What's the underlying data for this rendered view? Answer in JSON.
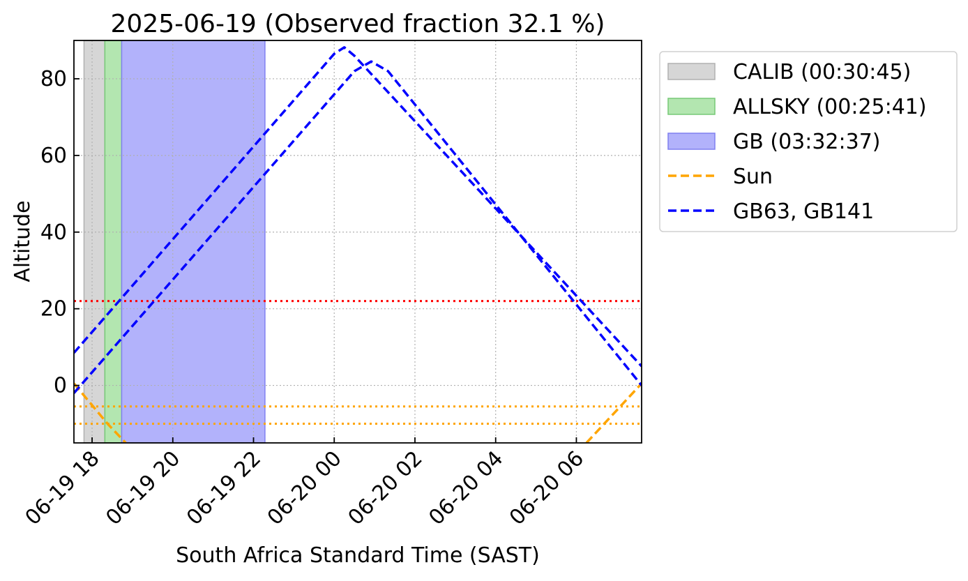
{
  "chart_data": {
    "type": "line",
    "title": "2025-06-19 (Observed fraction 32.1 %)",
    "xlabel": "South Africa Standard Time (SAST)",
    "ylabel": "Altitude",
    "xlim": [
      "2025-06-19 17:33",
      "2025-06-20 07:37"
    ],
    "ylim": [
      -15,
      90
    ],
    "grid": true,
    "legend_position": "outside-right",
    "x_ticks": [
      {
        "t": "2025-06-19 18:00",
        "label": "06-19 18"
      },
      {
        "t": "2025-06-19 20:00",
        "label": "06-19 20"
      },
      {
        "t": "2025-06-19 22:00",
        "label": "06-19 22"
      },
      {
        "t": "2025-06-20 00:00",
        "label": "06-20 00"
      },
      {
        "t": "2025-06-20 02:00",
        "label": "06-20 02"
      },
      {
        "t": "2025-06-20 04:00",
        "label": "06-20 04"
      },
      {
        "t": "2025-06-20 06:00",
        "label": "06-20 06"
      }
    ],
    "y_ticks": [
      0,
      20,
      40,
      60,
      80
    ],
    "spans": [
      {
        "name": "CALIB (00:30:45)",
        "start": "2025-06-19 17:48",
        "end": "2025-06-19 18:19",
        "color": "#d6d6d6",
        "edge": "#b0b0b0"
      },
      {
        "name": "ALLSKY (00:25:41)",
        "start": "2025-06-19 18:19",
        "end": "2025-06-19 18:44",
        "color": "#b3e6b0",
        "edge": "#77c977"
      },
      {
        "name": "GB (03:32:37)",
        "start": "2025-06-19 18:44",
        "end": "2025-06-19 22:17",
        "color": "#b2b2fb",
        "edge": "#8080f0"
      }
    ],
    "series": [
      {
        "name": "Sun",
        "color": "#ffa500",
        "style": "dashed",
        "segments": [
          [
            [
              "2025-06-19 17:33",
              0.5
            ],
            [
              "2025-06-19 18:23",
              -10
            ],
            [
              "2025-06-19 18:50",
              -15
            ]
          ],
          [
            [
              "2025-06-20 06:15",
              -15
            ],
            [
              "2025-06-20 07:37",
              0.5
            ]
          ]
        ]
      },
      {
        "name": "GB63, GB141",
        "color": "#0000ff",
        "style": "dashed",
        "segments": [
          [
            [
              "2025-06-19 17:33",
              8.5
            ],
            [
              "2025-06-20 00:00",
              86.5
            ],
            [
              "2025-06-20 00:15",
              88.2
            ],
            [
              "2025-06-20 00:30",
              86
            ],
            [
              "2025-06-20 07:37",
              5
            ]
          ],
          [
            [
              "2025-06-19 17:33",
              -2
            ],
            [
              "2025-06-20 00:30",
              82
            ],
            [
              "2025-06-20 00:55",
              84.5
            ],
            [
              "2025-06-20 01:20",
              82
            ],
            [
              "2025-06-20 07:37",
              0
            ]
          ]
        ]
      }
    ],
    "hlines": [
      {
        "y": 22,
        "color": "#ff0000",
        "style": "dotted"
      },
      {
        "y": -5.5,
        "color": "#ffa500",
        "style": "dotted"
      },
      {
        "y": -10,
        "color": "#ffa500",
        "style": "dotted"
      }
    ],
    "legend": [
      {
        "label": "CALIB (00:30:45)",
        "kind": "patch",
        "color": "#d6d6d6",
        "edge": "#b0b0b0"
      },
      {
        "label": "ALLSKY (00:25:41)",
        "kind": "patch",
        "color": "#b3e6b0",
        "edge": "#77c977"
      },
      {
        "label": "GB (03:32:37)",
        "kind": "patch",
        "color": "#b2b2fb",
        "edge": "#8080f0"
      },
      {
        "label": "Sun",
        "kind": "line",
        "color": "#ffa500"
      },
      {
        "label": "GB63, GB141",
        "kind": "line",
        "color": "#0000ff"
      }
    ]
  }
}
